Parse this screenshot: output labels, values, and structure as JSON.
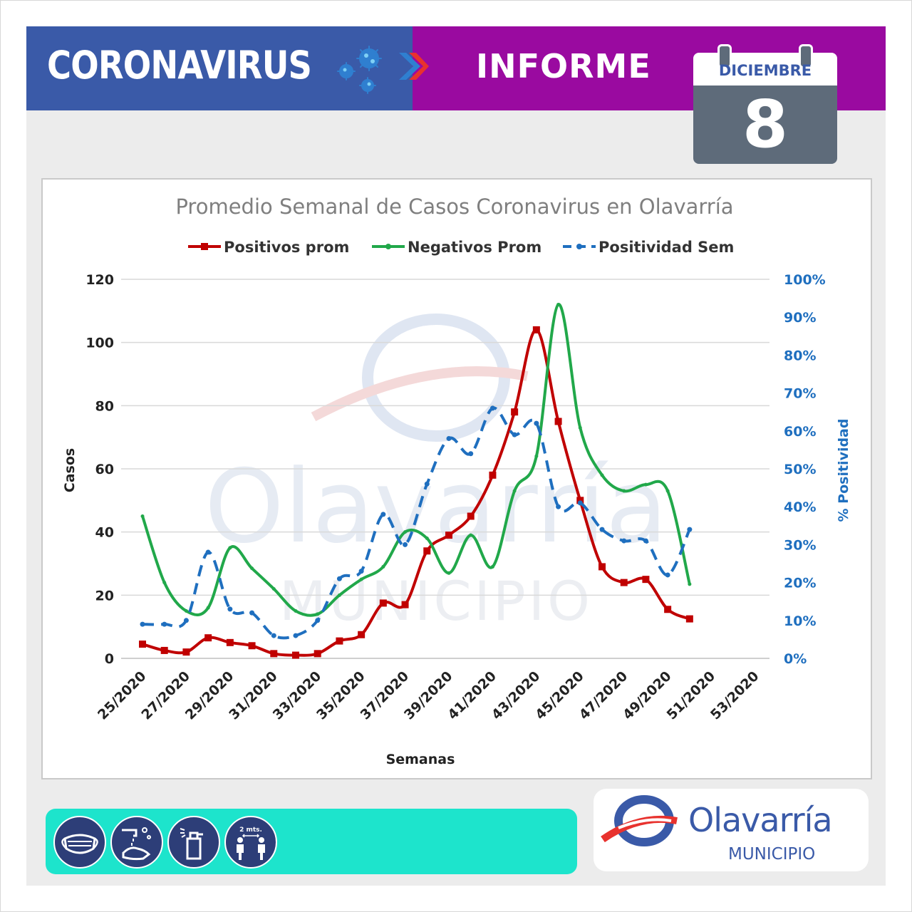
{
  "header": {
    "title": "CORONAVIRUS",
    "informe": "INFORME",
    "date_month": "DICIEMBRE",
    "date_day": "8",
    "colors": {
      "left": "#3a5aa8",
      "right": "#9a0aa0",
      "accent": "#e8322e"
    }
  },
  "chart_data": {
    "type": "line",
    "title": "Promedio Semanal de Casos Coronavirus en Olavarría",
    "xlabel": "Semanas",
    "ylabel": "Casos",
    "ylabel_right": "% Positividad",
    "ylim": [
      0,
      120
    ],
    "ylim_right": [
      0,
      1
    ],
    "legend_position": "top",
    "grid": "horizontal",
    "x": [
      "25/2020",
      "26/2020",
      "27/2020",
      "28/2020",
      "29/2020",
      "30/2020",
      "31/2020",
      "32/2020",
      "33/2020",
      "34/2020",
      "35/2020",
      "36/2020",
      "37/2020",
      "38/2020",
      "39/2020",
      "40/2020",
      "41/2020",
      "42/2020",
      "43/2020",
      "44/2020",
      "45/2020",
      "46/2020",
      "47/2020",
      "48/2020",
      "49/2020",
      "50/2020"
    ],
    "x_tick_labels": [
      "25/2020",
      "27/2020",
      "29/2020",
      "31/2020",
      "33/2020",
      "35/2020",
      "37/2020",
      "39/2020",
      "41/2020",
      "43/2020",
      "45/2020",
      "47/2020",
      "49/2020",
      "51/2020",
      "53/2020"
    ],
    "y_ticks": [
      "0",
      "20",
      "40",
      "60",
      "80",
      "100",
      "120"
    ],
    "y_right_ticks": [
      "0%",
      "10%",
      "20%",
      "30%",
      "40%",
      "50%",
      "60%",
      "70%",
      "80%",
      "90%",
      "100%"
    ],
    "series": [
      {
        "name": "Positivos prom",
        "axis": "left",
        "color": "#c00000",
        "values": [
          4.5,
          2.5,
          2,
          6.5,
          5,
          4,
          1.5,
          1,
          1.5,
          5.5,
          7.5,
          17.5,
          17,
          34,
          39,
          45,
          58,
          78,
          104,
          75,
          50,
          29,
          24,
          25,
          15.5,
          12.5
        ]
      },
      {
        "name": "Negativos Prom",
        "axis": "left",
        "color": "#21a84a",
        "values": [
          45,
          24,
          15,
          16,
          35,
          28.5,
          22,
          15,
          14,
          20,
          25,
          29,
          40,
          38,
          27,
          39,
          29,
          53,
          64,
          112,
          73,
          58,
          53,
          55,
          53,
          23.5
        ]
      },
      {
        "name": "Positividad Sem",
        "axis": "right",
        "color": "#1f6fbf",
        "dashed": true,
        "values": [
          0.09,
          0.09,
          0.1,
          0.28,
          0.13,
          0.12,
          0.06,
          0.06,
          0.1,
          0.21,
          0.23,
          0.38,
          0.3,
          0.46,
          0.58,
          0.54,
          0.66,
          0.59,
          0.62,
          0.4,
          0.41,
          0.34,
          0.31,
          0.31,
          0.22,
          0.34
        ]
      }
    ]
  },
  "watermark": {
    "word": "Olavarría",
    "sub": "MUNICIPIO"
  },
  "footer": {
    "icons": [
      "mask-icon",
      "hand-wash-icon",
      "sanitizer-icon",
      "distance-icon"
    ],
    "distance_label": "2 mts.",
    "logo_word": "Olavarría",
    "logo_sub": "MUNICIPIO"
  }
}
